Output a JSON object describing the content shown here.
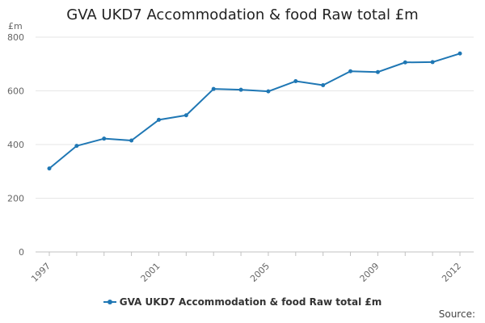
{
  "chart_data": {
    "type": "line",
    "title": "GVA UKD7 Accommodation & food Raw total £m",
    "ylabel": "£m",
    "xlabel": "",
    "x": [
      1997,
      1998,
      1999,
      2000,
      2001,
      2002,
      2003,
      2004,
      2005,
      2006,
      2007,
      2008,
      2009,
      2010,
      2011,
      2012
    ],
    "x_tick_labels": [
      "1997",
      "2001",
      "2005",
      "2009",
      "2012"
    ],
    "x_tick_values": [
      1997,
      2001,
      2005,
      2009,
      2012
    ],
    "y_ticks": [
      0,
      200,
      400,
      600,
      800
    ],
    "ylim": [
      0,
      800
    ],
    "grid": true,
    "legend_position": "bottom",
    "series": [
      {
        "name": "GVA UKD7 Accommodation & food Raw total £m",
        "color": "#1f77b4",
        "values": [
          311,
          395,
          422,
          415,
          492,
          509,
          607,
          604,
          598,
          636,
          621,
          673,
          670,
          706,
          707,
          739
        ]
      }
    ]
  },
  "source_label": "Source:"
}
